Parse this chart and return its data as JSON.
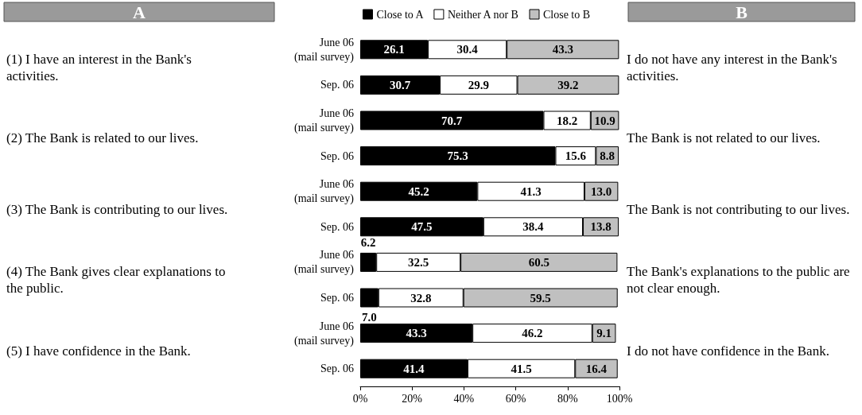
{
  "chart_data": {
    "type": "bar",
    "orientation": "horizontal",
    "stacked": true,
    "grid": false,
    "legend": "top",
    "categories": [
      "June 06\n(mail survey)",
      "Sep. 06",
      "June 06\n(mail survey)",
      "Sep. 06",
      "June 06\n(mail survey)",
      "Sep. 06",
      "June 06\n(mail survey)",
      "Sep. 06",
      "June 06\n(mail survey)",
      "Sep. 06"
    ],
    "series": [
      {
        "name": "Close to A",
        "color": "#000000",
        "values": [
          26.1,
          30.7,
          70.7,
          75.3,
          45.2,
          47.5,
          6.2,
          7.0,
          43.3,
          41.4
        ],
        "value_labels": [
          "26.1",
          "30.7",
          "70.7",
          "75.3",
          "45.2",
          "47.5",
          "6.2",
          "7.0",
          "43.3",
          "41.4"
        ]
      },
      {
        "name": "Neither A nor B",
        "color": "#ffffff",
        "values": [
          30.4,
          29.9,
          18.2,
          15.6,
          41.3,
          38.4,
          32.5,
          32.8,
          46.2,
          41.5
        ],
        "value_labels": [
          "30.4",
          "29.9",
          "18.2",
          "15.6",
          "41.3",
          "38.4",
          "32.5",
          "32.8",
          "46.2",
          "41.5"
        ]
      },
      {
        "name": "Close to B",
        "color": "#c0c0c0",
        "values": [
          43.3,
          39.2,
          10.9,
          8.8,
          13.0,
          13.8,
          60.5,
          59.5,
          9.1,
          16.4
        ],
        "value_labels": [
          "43.3",
          "39.2",
          "10.9",
          "8.8",
          "13.0",
          "13.8",
          "60.5",
          "59.5",
          "9.1",
          "16.4"
        ]
      }
    ],
    "xlim": [
      0,
      100
    ],
    "xticks": [
      {
        "value": 0,
        "label": "0%"
      },
      {
        "value": 20,
        "label": "20%"
      },
      {
        "value": 40,
        "label": "40%"
      },
      {
        "value": 60,
        "label": "60%"
      },
      {
        "value": 80,
        "label": "80%"
      },
      {
        "value": 100,
        "label": "100%"
      }
    ],
    "annotations": [
      "A",
      "B",
      "(1) I have an interest in the Bank's activities.",
      "(2) The Bank is related to our lives.",
      "(3) The Bank is contributing to our lives.",
      "(4) The Bank gives clear explanations to the public.",
      "(5) I have confidence in the Bank.",
      "I do not have any interest in the Bank's activities.",
      "The Bank is not related to our lives.",
      "The Bank is not contributing to our lives.",
      "The Bank's explanations to the public are not clear enough.",
      "I do not have confidence in the Bank."
    ]
  }
}
